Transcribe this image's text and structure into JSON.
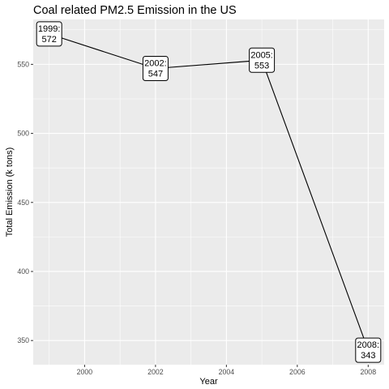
{
  "chart_data": {
    "type": "line",
    "title": "Coal related PM2.5 Emission in the US",
    "xlabel": "Year",
    "ylabel": "Total Emission (k tons)",
    "x": [
      1999,
      2002,
      2005,
      2008
    ],
    "y": [
      572,
      547,
      553,
      343
    ],
    "point_labels": [
      [
        "1999:",
        "572"
      ],
      [
        "2002:",
        "547"
      ],
      [
        "2005:",
        "553"
      ],
      [
        "2008:",
        "343"
      ]
    ],
    "xlim": [
      1998.55,
      2008.45
    ],
    "ylim": [
      332.5,
      582.5
    ],
    "x_ticks": [
      2000,
      2002,
      2004,
      2006,
      2008
    ],
    "y_ticks": [
      350,
      400,
      450,
      500,
      550
    ],
    "grid": true,
    "colors": {
      "panel_background": "#ebebeb",
      "grid_major": "#ffffff",
      "line": "#000000",
      "tick_text": "#4d4d4d"
    }
  }
}
